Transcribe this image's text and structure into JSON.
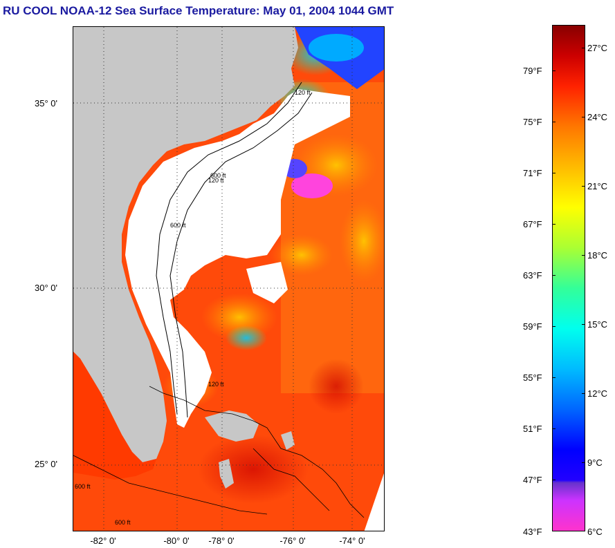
{
  "title": "RU COOL  NOAA-12  Sea Surface Temperature:  May 01, 2004 1044 GMT",
  "map": {
    "lat_labels": [
      "35° 0'",
      "30° 0'",
      "25° 0'"
    ],
    "lon_labels": [
      "-82° 0'",
      "-80° 0'",
      "-78° 0'",
      "-76° 0'",
      "-74° 0'"
    ],
    "contour_labels": [
      "120 ft",
      "600 ft",
      "120 ft",
      "600 ft",
      "120 ft",
      "600 ft",
      "600 ft"
    ],
    "colors": {
      "land": "#c7c7c7",
      "cloud": "#ffffff",
      "warm_water": "#ff4400",
      "grid": "#555555"
    }
  },
  "colorbar": {
    "fahrenheit_labels": [
      "79°F",
      "75°F",
      "71°F",
      "67°F",
      "63°F",
      "59°F",
      "55°F",
      "51°F",
      "47°F",
      "43°F"
    ],
    "celsius_labels": [
      "27°C",
      "24°C",
      "21°C",
      "18°C",
      "15°C",
      "12°C",
      "9°C",
      "6°C"
    ]
  }
}
